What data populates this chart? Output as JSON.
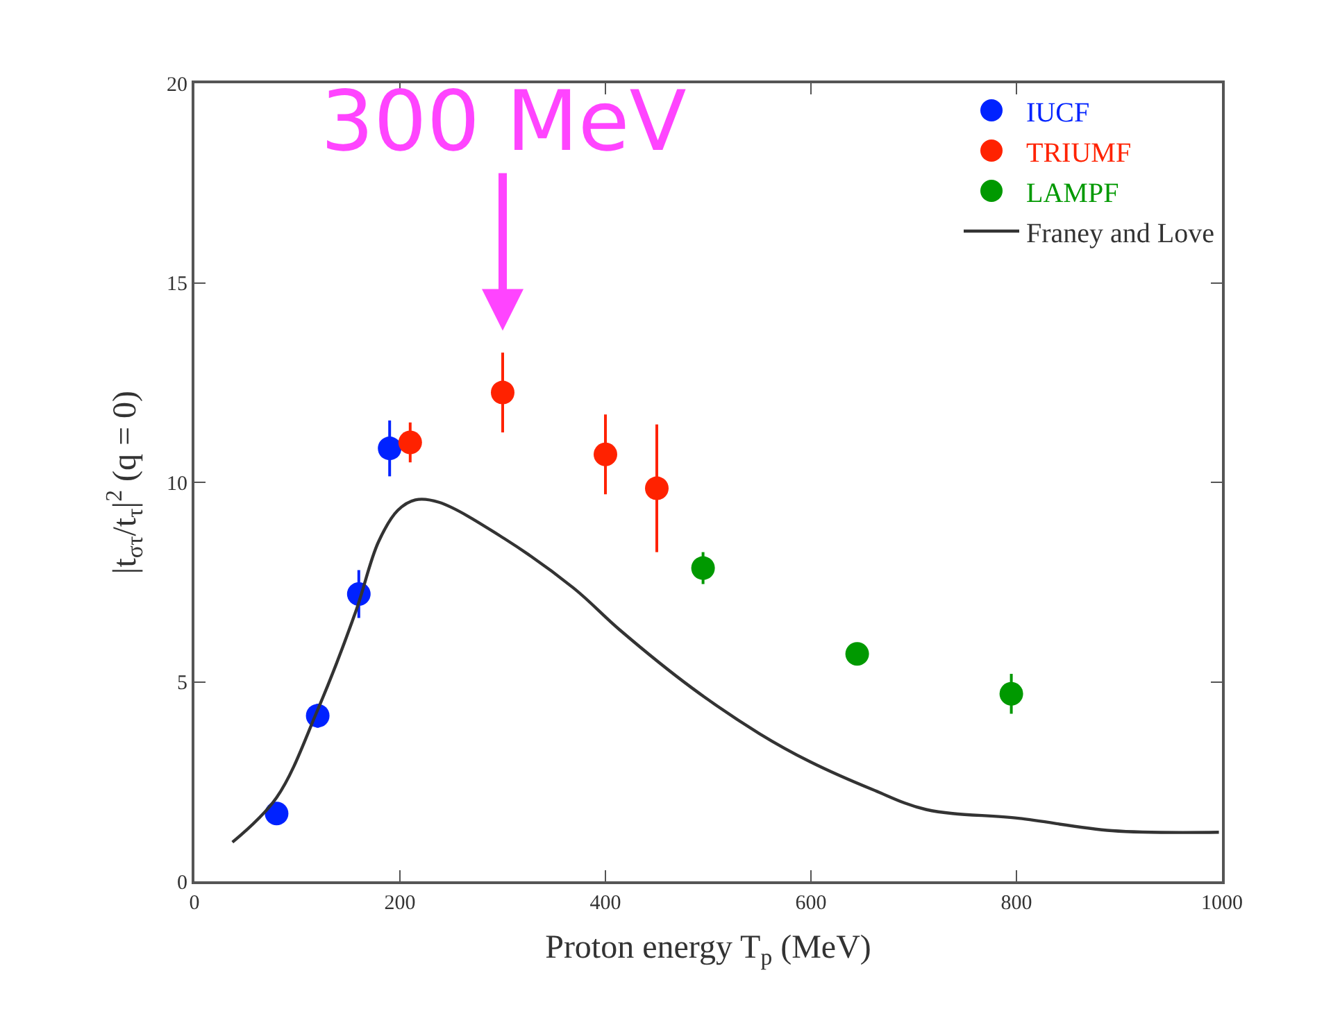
{
  "chart_data": {
    "type": "scatter",
    "xlabel": "Proton energy T$_{p}$ (MeV)",
    "ylabel": "|t$_{στ}$/t$_{τ}$|$^{2}$ (q = 0)",
    "xlim": [
      0,
      1000
    ],
    "xticks": [
      0,
      200,
      400,
      600,
      800,
      1000
    ],
    "ylim": [
      0,
      20
    ],
    "yticks": [
      0,
      5,
      10,
      15,
      20
    ],
    "legend": "top right",
    "marker": "circle",
    "annotations": [
      "300 MeV"
    ],
    "series": [
      {
        "name": "IUCF",
        "color": "#0022ff",
        "x": [
          80,
          120,
          160,
          190
        ],
        "values": [
          1.7,
          4.15,
          7.2,
          10.85
        ],
        "errors": [
          0.2,
          0.3,
          0.6,
          0.7
        ]
      },
      {
        "name": "TRIUMF",
        "color": "#ff2200",
        "x": [
          210,
          300,
          400,
          450
        ],
        "values": [
          11.0,
          12.25,
          10.7,
          9.85
        ],
        "errors": [
          0.5,
          1.0,
          1.0,
          [
            8.25,
            11.45
          ]
        ]
      },
      {
        "name": "LAMPF",
        "color": "#009900",
        "x": [
          495,
          645,
          795
        ],
        "values": [
          7.85,
          5.7,
          4.7
        ],
        "errors": [
          0.4,
          0.2,
          0.5
        ]
      },
      {
        "name": "Franey and Love",
        "type": "line",
        "color": "#333333",
        "marker": "none",
        "line_style": "solid",
        "x": [
          37,
          80,
          120,
          157,
          179,
          198,
          215,
          238,
          301,
          369,
          414,
          484,
          550,
          599,
          660,
          712,
          802,
          893,
          997
        ],
        "values": [
          0.98,
          2.1,
          4.3,
          6.76,
          8.5,
          9.3,
          9.56,
          9.5,
          8.6,
          7.35,
          6.3,
          4.85,
          3.7,
          3.0,
          2.3,
          1.8,
          1.58,
          1.27,
          1.23
        ]
      }
    ]
  }
}
